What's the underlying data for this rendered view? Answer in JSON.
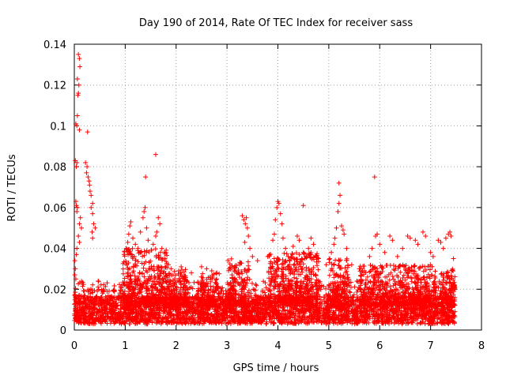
{
  "chart_data": {
    "type": "scatter",
    "title": "Day 190 of 2014, Rate Of TEC Index for receiver sass",
    "xlabel": "GPS time / hours",
    "ylabel": "ROTI / TECUs",
    "xlim": [
      0,
      8
    ],
    "ylim": [
      0,
      0.14
    ],
    "xticks": [
      0,
      1,
      2,
      3,
      4,
      5,
      6,
      7,
      8
    ],
    "yticks": [
      0,
      0.02,
      0.04,
      0.06,
      0.08,
      0.1,
      0.12,
      0.14
    ],
    "xtick_labels": [
      "0",
      "1",
      "2",
      "3",
      "4",
      "5",
      "6",
      "7",
      "8"
    ],
    "ytick_labels": [
      "0",
      "0.02",
      "0.04",
      "0.06",
      "0.08",
      "0.1",
      "0.12",
      "0.14"
    ],
    "grid": true,
    "marker": "plus",
    "color": "#ff0000",
    "series": [
      {
        "name": "ROTI",
        "points": [
          [
            0.08,
            0.135
          ],
          [
            0.1,
            0.133
          ],
          [
            0.11,
            0.129
          ],
          [
            0.06,
            0.123
          ],
          [
            0.09,
            0.12
          ],
          [
            0.08,
            0.116
          ],
          [
            0.07,
            0.115
          ],
          [
            0.03,
            0.101
          ],
          [
            0.05,
            0.1
          ],
          [
            0.06,
            0.105
          ],
          [
            0.1,
            0.098
          ],
          [
            0.26,
            0.097
          ],
          [
            0.02,
            0.083
          ],
          [
            0.05,
            0.082
          ],
          [
            0.04,
            0.08
          ],
          [
            0.22,
            0.082
          ],
          [
            0.25,
            0.08
          ],
          [
            0.24,
            0.077
          ],
          [
            0.27,
            0.075
          ],
          [
            0.29,
            0.073
          ],
          [
            0.3,
            0.071
          ],
          [
            0.31,
            0.068
          ],
          [
            0.33,
            0.066
          ],
          [
            0.36,
            0.062
          ],
          [
            0.33,
            0.06
          ],
          [
            0.36,
            0.057
          ],
          [
            0.38,
            0.052
          ],
          [
            0.41,
            0.05
          ],
          [
            0.35,
            0.048
          ],
          [
            0.36,
            0.045
          ],
          [
            0.03,
            0.063
          ],
          [
            0.04,
            0.061
          ],
          [
            0.06,
            0.06
          ],
          [
            0.05,
            0.058
          ],
          [
            0.12,
            0.055
          ],
          [
            0.1,
            0.052
          ],
          [
            0.14,
            0.05
          ],
          [
            0.08,
            0.046
          ],
          [
            0.1,
            0.043
          ],
          [
            0.05,
            0.04
          ],
          [
            0.04,
            0.037
          ],
          [
            0.01,
            0.034
          ],
          [
            0.02,
            0.03
          ],
          [
            0.01,
            0.027
          ],
          [
            0.03,
            0.025
          ],
          [
            1.6,
            0.086
          ],
          [
            1.4,
            0.075
          ],
          [
            5.2,
            0.072
          ],
          [
            5.9,
            0.075
          ],
          [
            4.5,
            0.061
          ],
          [
            1.02,
            0.04
          ],
          [
            1.05,
            0.043
          ],
          [
            1.07,
            0.047
          ],
          [
            1.09,
            0.051
          ],
          [
            1.11,
            0.053
          ],
          [
            1.15,
            0.045
          ],
          [
            1.2,
            0.042
          ],
          [
            1.25,
            0.04
          ],
          [
            1.3,
            0.048
          ],
          [
            1.35,
            0.055
          ],
          [
            1.37,
            0.058
          ],
          [
            1.39,
            0.06
          ],
          [
            1.42,
            0.05
          ],
          [
            1.45,
            0.044
          ],
          [
            1.55,
            0.042
          ],
          [
            1.6,
            0.046
          ],
          [
            1.62,
            0.048
          ],
          [
            1.65,
            0.055
          ],
          [
            1.68,
            0.052
          ],
          [
            1.72,
            0.04
          ],
          [
            1.78,
            0.035
          ],
          [
            1.85,
            0.032
          ],
          [
            1.9,
            0.03
          ],
          [
            2.05,
            0.029
          ],
          [
            2.1,
            0.031
          ],
          [
            2.3,
            0.028
          ],
          [
            2.5,
            0.031
          ],
          [
            2.6,
            0.03
          ],
          [
            2.7,
            0.029
          ],
          [
            2.8,
            0.028
          ],
          [
            3.1,
            0.027
          ],
          [
            3.15,
            0.031
          ],
          [
            3.3,
            0.056
          ],
          [
            3.33,
            0.054
          ],
          [
            3.36,
            0.052
          ],
          [
            3.38,
            0.055
          ],
          [
            3.4,
            0.05
          ],
          [
            3.42,
            0.046
          ],
          [
            3.45,
            0.04
          ],
          [
            3.35,
            0.043
          ],
          [
            3.5,
            0.036
          ],
          [
            3.6,
            0.034
          ],
          [
            3.8,
            0.036
          ],
          [
            3.9,
            0.044
          ],
          [
            3.93,
            0.047
          ],
          [
            3.95,
            0.054
          ],
          [
            3.98,
            0.06
          ],
          [
            4.0,
            0.063
          ],
          [
            4.02,
            0.062
          ],
          [
            4.05,
            0.057
          ],
          [
            4.08,
            0.052
          ],
          [
            4.1,
            0.045
          ],
          [
            4.15,
            0.04
          ],
          [
            4.2,
            0.036
          ],
          [
            4.3,
            0.041
          ],
          [
            4.38,
            0.046
          ],
          [
            4.42,
            0.044
          ],
          [
            4.5,
            0.038
          ],
          [
            4.6,
            0.04
          ],
          [
            4.65,
            0.045
          ],
          [
            4.7,
            0.042
          ],
          [
            4.8,
            0.035
          ],
          [
            4.95,
            0.032
          ],
          [
            5.05,
            0.038
          ],
          [
            5.1,
            0.042
          ],
          [
            5.12,
            0.045
          ],
          [
            5.15,
            0.05
          ],
          [
            5.18,
            0.058
          ],
          [
            5.2,
            0.062
          ],
          [
            5.22,
            0.066
          ],
          [
            5.25,
            0.051
          ],
          [
            5.28,
            0.049
          ],
          [
            5.3,
            0.047
          ],
          [
            5.35,
            0.04
          ],
          [
            5.45,
            0.032
          ],
          [
            5.6,
            0.03
          ],
          [
            5.7,
            0.029
          ],
          [
            5.8,
            0.036
          ],
          [
            5.85,
            0.04
          ],
          [
            5.92,
            0.046
          ],
          [
            5.95,
            0.047
          ],
          [
            6.0,
            0.042
          ],
          [
            6.1,
            0.038
          ],
          [
            6.2,
            0.046
          ],
          [
            6.25,
            0.044
          ],
          [
            6.35,
            0.036
          ],
          [
            6.45,
            0.04
          ],
          [
            6.55,
            0.046
          ],
          [
            6.6,
            0.045
          ],
          [
            6.7,
            0.044
          ],
          [
            6.75,
            0.042
          ],
          [
            6.85,
            0.048
          ],
          [
            6.9,
            0.046
          ],
          [
            7.0,
            0.038
          ],
          [
            7.05,
            0.036
          ],
          [
            7.15,
            0.044
          ],
          [
            7.2,
            0.043
          ],
          [
            7.25,
            0.04
          ],
          [
            7.3,
            0.045
          ],
          [
            7.35,
            0.047
          ],
          [
            7.38,
            0.048
          ],
          [
            7.4,
            0.046
          ],
          [
            7.45,
            0.035
          ],
          [
            7.47,
            0.022
          ]
        ],
        "background_band": {
          "x_start": 0.0,
          "x_end": 7.48,
          "y_min": 0.003,
          "y_max": 0.024,
          "typical": 0.011,
          "count": 4200
        },
        "clusters": [
          {
            "x_start": 0.95,
            "x_end": 1.85,
            "y_max": 0.04,
            "count": 380
          },
          {
            "x_start": 1.85,
            "x_end": 2.2,
            "y_max": 0.03,
            "count": 140
          },
          {
            "x_start": 2.45,
            "x_end": 2.85,
            "y_max": 0.028,
            "count": 120
          },
          {
            "x_start": 3.0,
            "x_end": 3.45,
            "y_max": 0.035,
            "count": 150
          },
          {
            "x_start": 3.8,
            "x_end": 4.8,
            "y_max": 0.038,
            "count": 420
          },
          {
            "x_start": 5.0,
            "x_end": 5.4,
            "y_max": 0.035,
            "count": 170
          },
          {
            "x_start": 5.6,
            "x_end": 7.1,
            "y_max": 0.032,
            "count": 520
          },
          {
            "x_start": 7.2,
            "x_end": 7.48,
            "y_max": 0.03,
            "count": 110
          }
        ]
      }
    ]
  }
}
